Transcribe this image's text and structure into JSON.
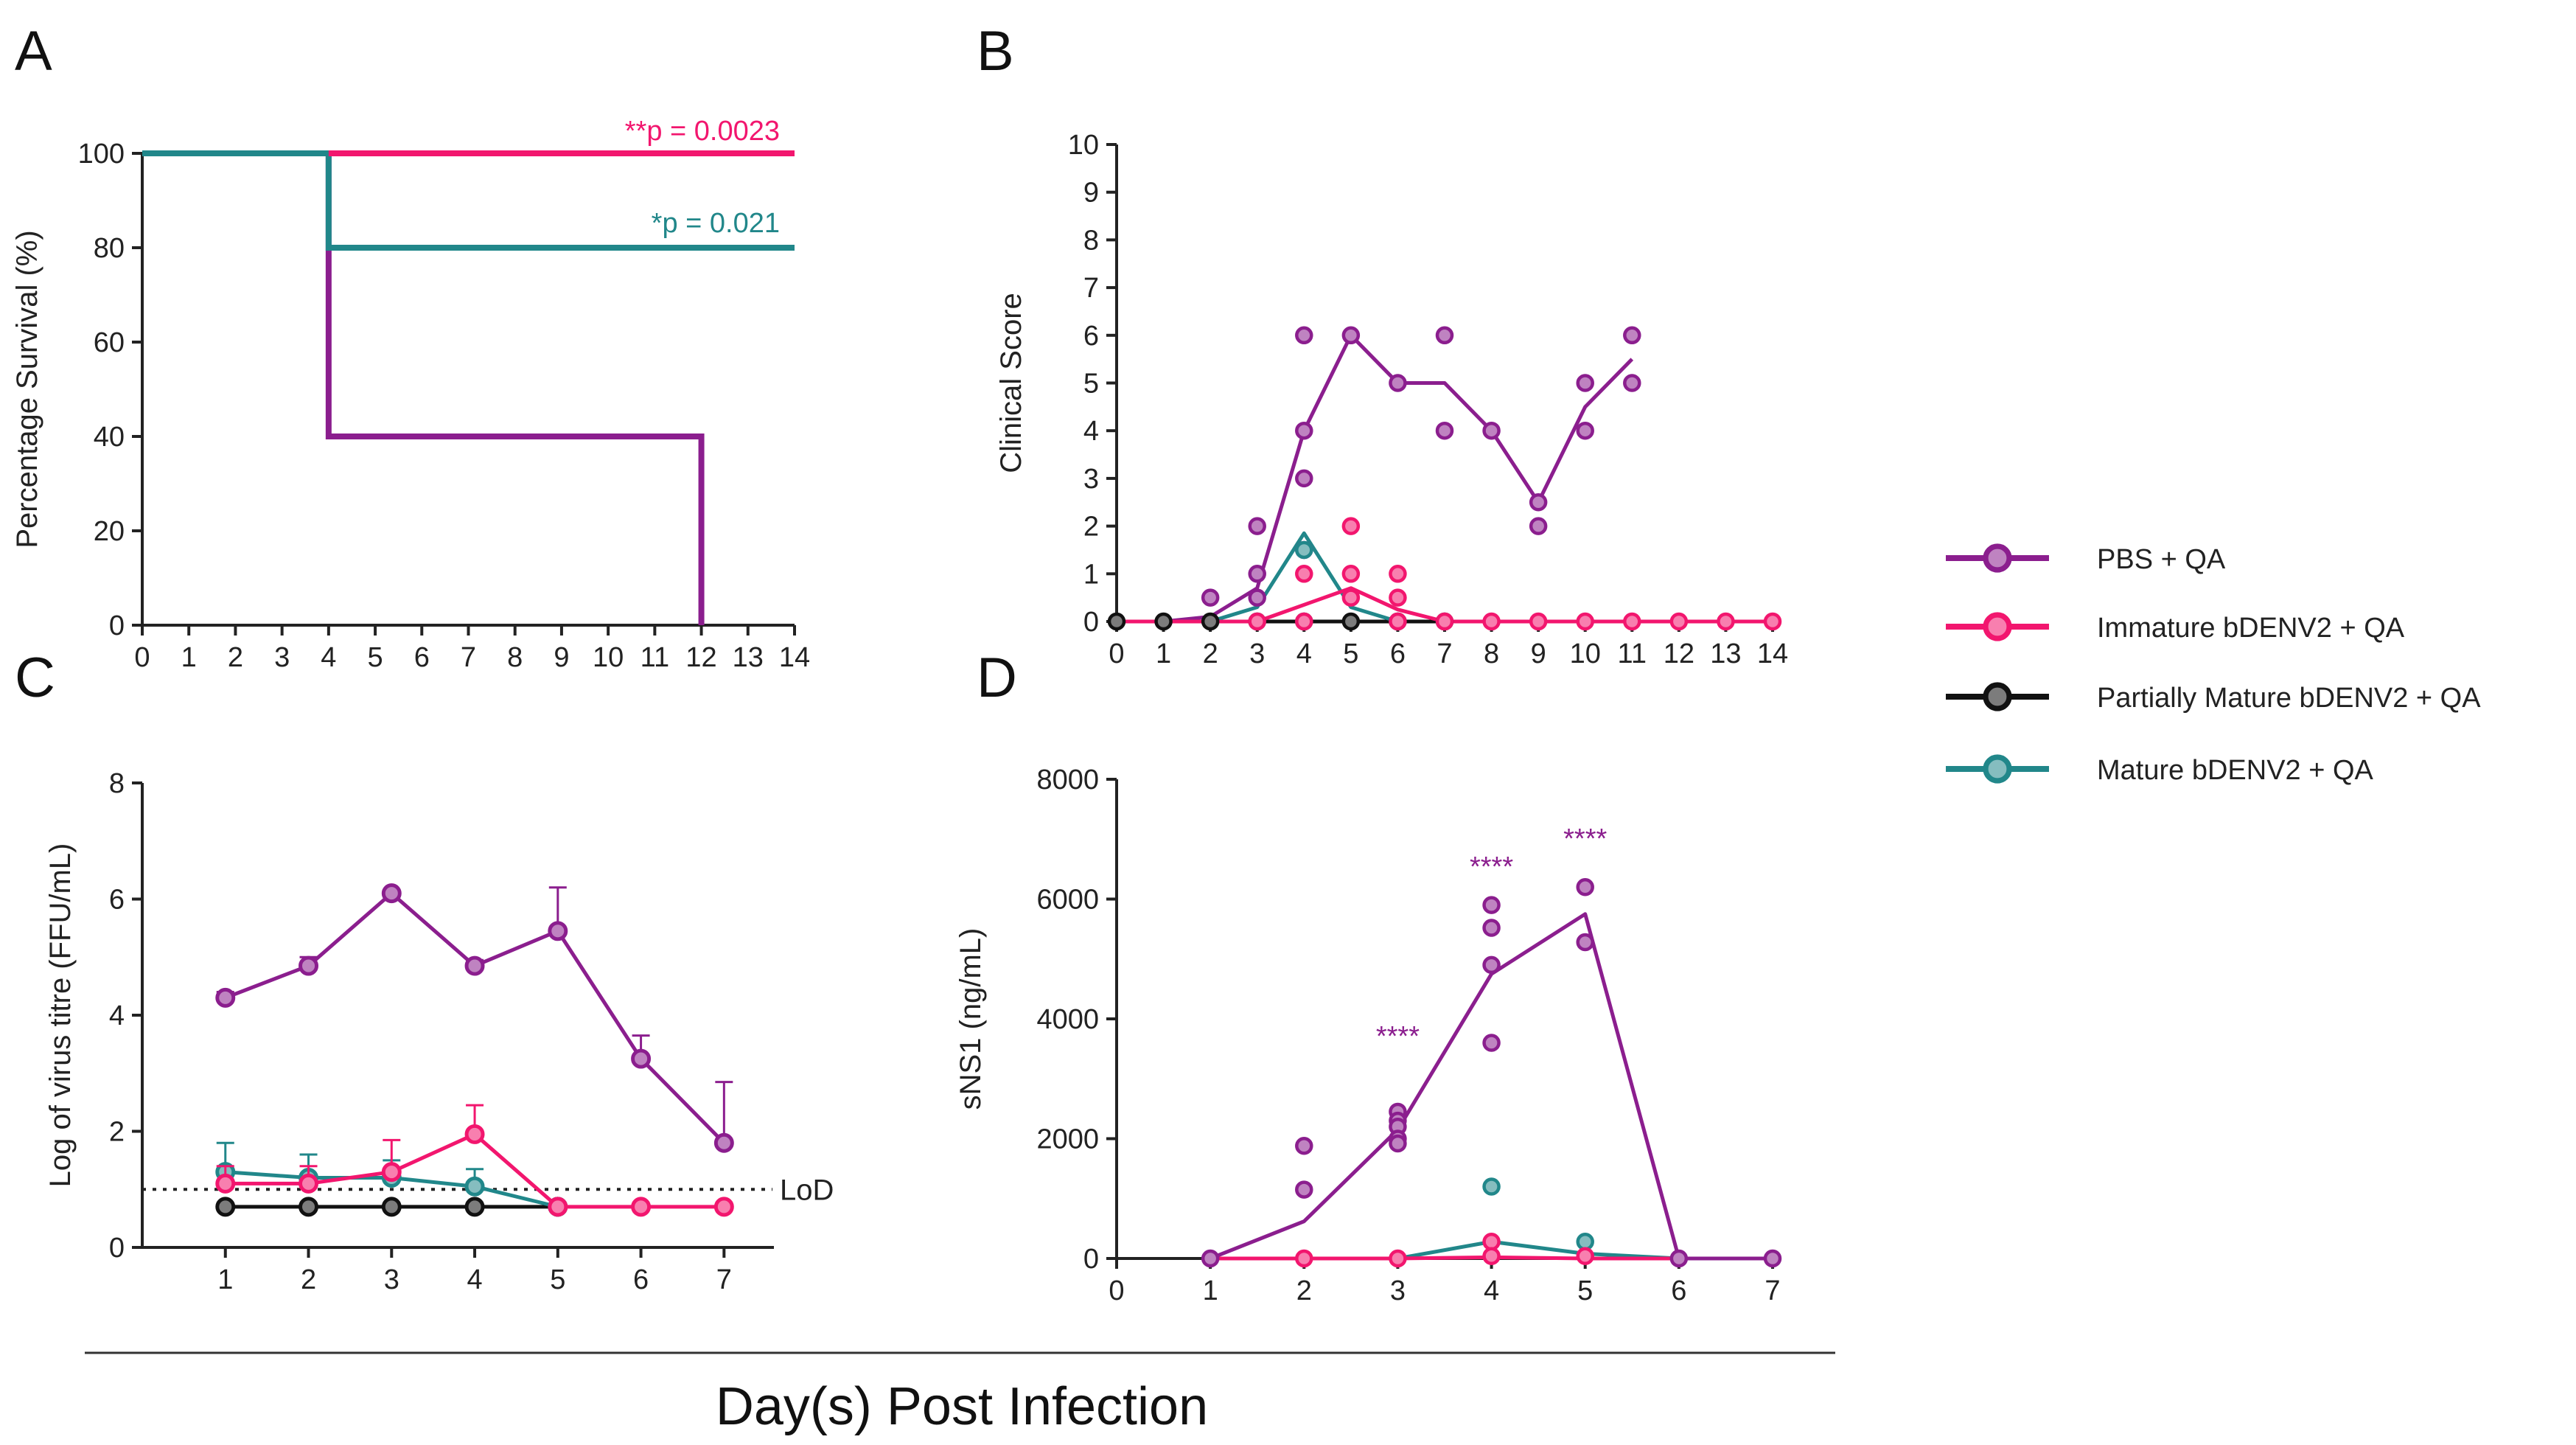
{
  "colors": {
    "pbs": "#8B1E8E",
    "immature": "#F2166E",
    "partial": "#111111",
    "mature": "#21878A"
  },
  "x_title": "Day(s) Post Infection",
  "legend": [
    {
      "key": "pbs",
      "label": "PBS + QA"
    },
    {
      "key": "immature",
      "label": "Immature bDENV2 + QA"
    },
    {
      "key": "partial",
      "label": "Partially Mature bDENV2 + QA"
    },
    {
      "key": "mature",
      "label": "Mature bDENV2 + QA"
    }
  ],
  "chart_data": [
    {
      "panel": "A",
      "type": "line",
      "subtype": "survival-step",
      "ylabel": "Percentage Survival (%)",
      "xlim": [
        0,
        14
      ],
      "ylim": [
        0,
        100
      ],
      "x_ticks": [
        "0",
        "1",
        "2",
        "3",
        "4",
        "5",
        "6",
        "7",
        "8",
        "9",
        "10",
        "11",
        "12",
        "13",
        "14"
      ],
      "y_ticks": [
        "0",
        "20",
        "40",
        "60",
        "80",
        "100"
      ],
      "series": [
        {
          "key": "pbs",
          "name": "PBS + QA",
          "steps": [
            [
              0,
              100
            ],
            [
              4,
              100
            ],
            [
              4,
              40
            ],
            [
              12,
              40
            ],
            [
              12,
              0
            ]
          ]
        },
        {
          "key": "partial",
          "name": "Partially Mature bDENV2 + QA",
          "steps": [
            [
              0,
              100
            ],
            [
              14,
              100
            ]
          ]
        },
        {
          "key": "mature",
          "name": "Mature bDENV2 + QA",
          "steps": [
            [
              0,
              100
            ],
            [
              4,
              100
            ],
            [
              4,
              80
            ],
            [
              14,
              80
            ]
          ]
        },
        {
          "key": "immature",
          "name": "Immature bDENV2 + QA",
          "steps": [
            [
              4,
              100
            ],
            [
              14,
              100
            ]
          ]
        }
      ],
      "annotations": [
        {
          "text": "**p = 0.0023",
          "color_key": "immature"
        },
        {
          "text": "*p = 0.021",
          "color_key": "mature"
        }
      ]
    },
    {
      "panel": "B",
      "type": "line",
      "subtype": "points-and-mean",
      "ylabel": "Clinical Score",
      "xlim": [
        0,
        14
      ],
      "ylim": [
        0,
        10
      ],
      "x_ticks": [
        "0",
        "1",
        "2",
        "3",
        "4",
        "5",
        "6",
        "7",
        "8",
        "9",
        "10",
        "11",
        "12",
        "13",
        "14"
      ],
      "y_ticks": [
        "0",
        "1",
        "2",
        "3",
        "4",
        "5",
        "6",
        "7",
        "8",
        "9",
        "10"
      ],
      "series": [
        {
          "key": "partial",
          "name": "Partially Mature bDENV2 + QA",
          "line": [
            [
              0,
              0
            ],
            [
              1,
              0
            ],
            [
              2,
              0
            ],
            [
              3,
              0
            ],
            [
              4,
              0
            ],
            [
              5,
              0
            ],
            [
              6,
              0
            ],
            [
              7,
              0
            ]
          ],
          "points": [
            [
              0,
              0
            ],
            [
              1,
              0
            ],
            [
              2,
              0
            ],
            [
              3,
              0
            ],
            [
              4,
              0
            ],
            [
              5,
              0
            ],
            [
              6,
              0
            ],
            [
              7,
              0
            ]
          ]
        },
        {
          "key": "pbs",
          "name": "PBS + QA",
          "line": [
            [
              0,
              0
            ],
            [
              1,
              0
            ],
            [
              2,
              0.1
            ],
            [
              3,
              0.7
            ],
            [
              4,
              4
            ],
            [
              5,
              6
            ],
            [
              6,
              5
            ],
            [
              7,
              5
            ],
            [
              8,
              4
            ],
            [
              9,
              2.5
            ],
            [
              10,
              4.5
            ],
            [
              11,
              5.5
            ]
          ],
          "points": [
            [
              2,
              0.5
            ],
            [
              3,
              2
            ],
            [
              3,
              1
            ],
            [
              3,
              0.5
            ],
            [
              4,
              6
            ],
            [
              4,
              4
            ],
            [
              4,
              3
            ],
            [
              4,
              1.5
            ],
            [
              5,
              6
            ],
            [
              6,
              5
            ],
            [
              7,
              6
            ],
            [
              7,
              4
            ],
            [
              8,
              4
            ],
            [
              9,
              2.5
            ],
            [
              9,
              2
            ],
            [
              10,
              5
            ],
            [
              10,
              4
            ],
            [
              11,
              6
            ],
            [
              11,
              5
            ]
          ]
        },
        {
          "key": "mature",
          "name": "Mature bDENV2 + QA",
          "line": [
            [
              2,
              0
            ],
            [
              3,
              0.3
            ],
            [
              4,
              1.85
            ],
            [
              5,
              0.3
            ],
            [
              6,
              0
            ]
          ],
          "points": [
            [
              4,
              1.5
            ]
          ]
        },
        {
          "key": "immature",
          "name": "Immature bDENV2 + QA",
          "line": [
            [
              0,
              0
            ],
            [
              1,
              0
            ],
            [
              2,
              0
            ],
            [
              3,
              0
            ],
            [
              4,
              0.35
            ],
            [
              5,
              0.7
            ],
            [
              6,
              0.25
            ],
            [
              7,
              0
            ],
            [
              8,
              0
            ],
            [
              9,
              0
            ],
            [
              10,
              0
            ],
            [
              11,
              0
            ],
            [
              12,
              0
            ],
            [
              13,
              0
            ],
            [
              14,
              0
            ]
          ],
          "points": [
            [
              3,
              0
            ],
            [
              4,
              1
            ],
            [
              4,
              0
            ],
            [
              5,
              2
            ],
            [
              5,
              1
            ],
            [
              5,
              0.5
            ],
            [
              6,
              1
            ],
            [
              6,
              0.5
            ],
            [
              6,
              0
            ],
            [
              7,
              0
            ],
            [
              8,
              0
            ],
            [
              9,
              0
            ],
            [
              10,
              0
            ],
            [
              11,
              0
            ],
            [
              12,
              0
            ],
            [
              13,
              0
            ],
            [
              14,
              0
            ]
          ]
        }
      ]
    },
    {
      "panel": "C",
      "type": "line",
      "subtype": "mean-with-error",
      "ylabel": "Log of virus titre (FFU/mL)",
      "xlim": [
        0,
        7.6
      ],
      "ylim": [
        0,
        8
      ],
      "x_ticks": [
        "1",
        "2",
        "3",
        "4",
        "5",
        "6",
        "7"
      ],
      "y_ticks": [
        "0",
        "2",
        "4",
        "6",
        "8"
      ],
      "reference_line": {
        "y": 1,
        "label": "LoD"
      },
      "series": [
        {
          "key": "partial",
          "name": "Partially Mature bDENV2 + QA",
          "x": [
            1,
            2,
            3,
            4,
            5
          ],
          "y": [
            0.7,
            0.7,
            0.7,
            0.7,
            0.7
          ],
          "err": [
            0,
            0,
            0,
            0,
            0
          ]
        },
        {
          "key": "mature",
          "name": "Mature bDENV2 + QA",
          "x": [
            1,
            2,
            3,
            4,
            5
          ],
          "y": [
            1.3,
            1.2,
            1.2,
            1.05,
            0.7
          ],
          "err": [
            0.5,
            0.4,
            0.3,
            0.3,
            0
          ]
        },
        {
          "key": "immature",
          "name": "Immature bDENV2 + QA",
          "x": [
            1,
            2,
            3,
            4,
            5,
            6,
            7
          ],
          "y": [
            1.1,
            1.1,
            1.3,
            1.95,
            0.7,
            0.7,
            0.7
          ],
          "err": [
            0.3,
            0.3,
            0.55,
            0.5,
            0,
            0,
            0
          ]
        },
        {
          "key": "pbs",
          "name": "PBS + QA",
          "x": [
            1,
            2,
            3,
            4,
            5,
            6,
            7
          ],
          "y": [
            4.3,
            4.85,
            6.1,
            4.85,
            5.45,
            3.25,
            1.8
          ],
          "err": [
            0.1,
            0.15,
            0.05,
            0.1,
            0.75,
            0.4,
            1.05
          ]
        }
      ]
    },
    {
      "panel": "D",
      "type": "line",
      "subtype": "points-and-mean",
      "ylabel": "sNS1 (ng/mL)",
      "xlim": [
        0,
        7
      ],
      "ylim": [
        0,
        8000
      ],
      "x_ticks": [
        "0",
        "1",
        "2",
        "3",
        "4",
        "5",
        "6",
        "7"
      ],
      "y_ticks": [
        "0",
        "2000",
        "4000",
        "6000",
        "8000"
      ],
      "series": [
        {
          "key": "pbs",
          "name": "PBS + QA",
          "line": [
            [
              1,
              0
            ],
            [
              2,
              620
            ],
            [
              3,
              2150
            ],
            [
              4,
              4750
            ],
            [
              5,
              5750
            ],
            [
              6,
              0
            ],
            [
              7,
              0
            ]
          ],
          "points": [
            [
              1,
              0
            ],
            [
              2,
              1880
            ],
            [
              2,
              1150
            ],
            [
              3,
              2450
            ],
            [
              3,
              2300
            ],
            [
              3,
              2200
            ],
            [
              3,
              2000
            ],
            [
              3,
              1920
            ],
            [
              4,
              5900
            ],
            [
              4,
              5520
            ],
            [
              4,
              4900
            ],
            [
              4,
              3600
            ],
            [
              5,
              6200
            ],
            [
              5,
              5280
            ],
            [
              6,
              0
            ],
            [
              7,
              0
            ]
          ]
        },
        {
          "key": "mature",
          "name": "Mature bDENV2 + QA",
          "line": [
            [
              3,
              0
            ],
            [
              4,
              280
            ],
            [
              5,
              80
            ],
            [
              6,
              0
            ]
          ],
          "points": [
            [
              4,
              1200
            ],
            [
              5,
              280
            ]
          ]
        },
        {
          "key": "immature",
          "name": "Immature bDENV2 + QA",
          "line": [
            [
              1,
              0
            ],
            [
              2,
              0
            ],
            [
              3,
              0
            ],
            [
              4,
              20
            ],
            [
              5,
              0
            ],
            [
              6,
              0
            ]
          ],
          "points": [
            [
              2,
              0
            ],
            [
              3,
              0
            ],
            [
              4,
              280
            ],
            [
              4,
              40
            ],
            [
              5,
              40
            ]
          ]
        }
      ],
      "annotations": [
        {
          "x": 3,
          "text": "****"
        },
        {
          "x": 4,
          "text": "****"
        },
        {
          "x": 5,
          "text": "****"
        }
      ]
    }
  ]
}
